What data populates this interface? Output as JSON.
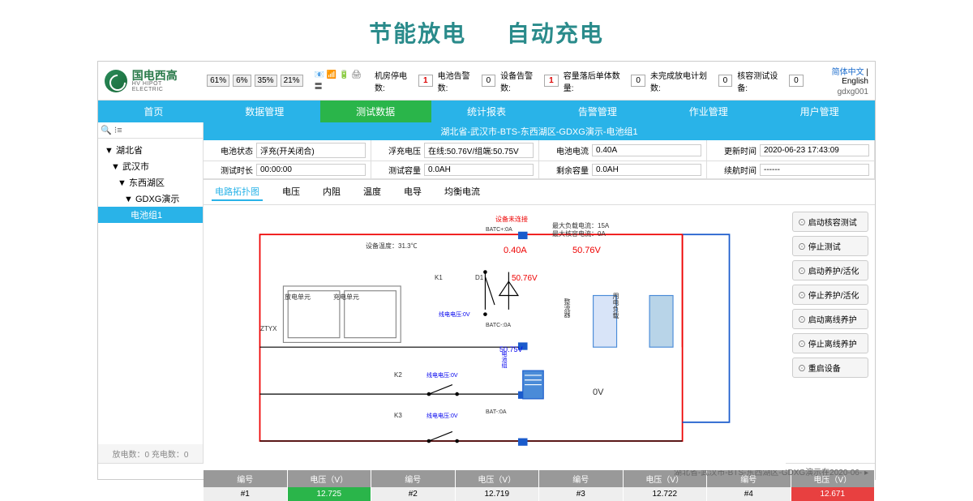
{
  "slogan": {
    "left": "节能放电",
    "right": "自动充电"
  },
  "logo": {
    "cn": "国电西高",
    "en": "HV HIPOT ELECTRIC"
  },
  "topStats": {
    "pcts": [
      "61%",
      "6%",
      "35%",
      "21%"
    ],
    "items": [
      {
        "label": "机房停电数:",
        "value": "1",
        "red": true
      },
      {
        "label": "电池告警数:",
        "value": "0"
      },
      {
        "label": "设备告警数:",
        "value": "1",
        "red": true
      },
      {
        "label": "容量落后单体数量:",
        "value": "0"
      },
      {
        "label": "未完成放电计划数:",
        "value": "0"
      },
      {
        "label": "核容测试设备:",
        "value": "0"
      }
    ]
  },
  "topRight": {
    "lang1": "简体中文",
    "lang2": "English",
    "user": "gdxg001"
  },
  "nav": [
    "首页",
    "数据管理",
    "测试数据",
    "统计报表",
    "告警管理",
    "作业管理",
    "用户管理"
  ],
  "navActive": 2,
  "tree": [
    {
      "text": "▼ 湖北省",
      "lvl": 1
    },
    {
      "text": "▼ 武汉市",
      "lvl": 2
    },
    {
      "text": "▼ 东西湖区",
      "lvl": 3
    },
    {
      "text": "▼ GDXG演示",
      "lvl": 4
    },
    {
      "text": "电池组1",
      "lvl": 5
    }
  ],
  "sidebarFooter": "放电数：0 充电数：0",
  "breadcrumb": "湖北省-武汉市-BTS-东西湖区-GDXG演示-电池组1",
  "status": [
    {
      "label": "电池状态",
      "value": "浮充(开关闭合)"
    },
    {
      "label": "浮充电压",
      "value": "在线:50.76V/组端:50.75V"
    },
    {
      "label": "电池电流",
      "value": "0.40A"
    },
    {
      "label": "更新时间",
      "value": "2020-06-23 17:43:09"
    },
    {
      "label": "测试时长",
      "value": "00:00:00"
    },
    {
      "label": "测试容量",
      "value": "0.0AH"
    },
    {
      "label": "剩余容量",
      "value": "0.0AH"
    },
    {
      "label": "续航时间",
      "value": "------"
    }
  ],
  "subtabs": [
    "电路拓扑图",
    "电压",
    "内阻",
    "温度",
    "电导",
    "均衡电流"
  ],
  "subtabActive": 0,
  "diagram": {
    "devStatus": "设备未连接",
    "temp": "设备温度：31.3℃",
    "maxLoad": "最大负载电流：15A",
    "maxTest": "最大核容电流：0A",
    "current": "0.40A",
    "voltage1": "50.76V",
    "voltage2": "50.76V",
    "lineV": "50.75V",
    "zeroV": "0V",
    "batcP": "BATC+:0A",
    "batcN": "BATC-:0A",
    "batN": "BAT-:0A",
    "unit1": "放电单元",
    "unit2": "充电单元",
    "ztyx": "ZTYX",
    "k1": "K1",
    "k2": "K2",
    "k3": "K3",
    "d1": "D1",
    "lv1": "线电电压:0V",
    "lv2": "线电电压:0V",
    "lv3": "线电电压:0V",
    "rect": "整流器",
    "load": "用电负载",
    "batt": "电池组"
  },
  "actions": [
    "启动核容测试",
    "停止测试",
    "启动养护/活化",
    "停止养护/活化",
    "启动离线养护",
    "停止离线养护",
    "重启设备"
  ],
  "table": {
    "headers": [
      "编号",
      "电压（V）",
      "编号",
      "电压（V）",
      "编号",
      "电压（V）",
      "编号",
      "电压（V）"
    ],
    "row": [
      {
        "v": "#1"
      },
      {
        "v": "12.725",
        "cls": "green"
      },
      {
        "v": "#2"
      },
      {
        "v": "12.719"
      },
      {
        "v": "#3"
      },
      {
        "v": "12.722"
      },
      {
        "v": "#4"
      },
      {
        "v": "12.671",
        "cls": "red"
      }
    ]
  },
  "footer": "湖北省-武汉市-BTS-东西湖区-GDXG演示在2020-06- ▸"
}
